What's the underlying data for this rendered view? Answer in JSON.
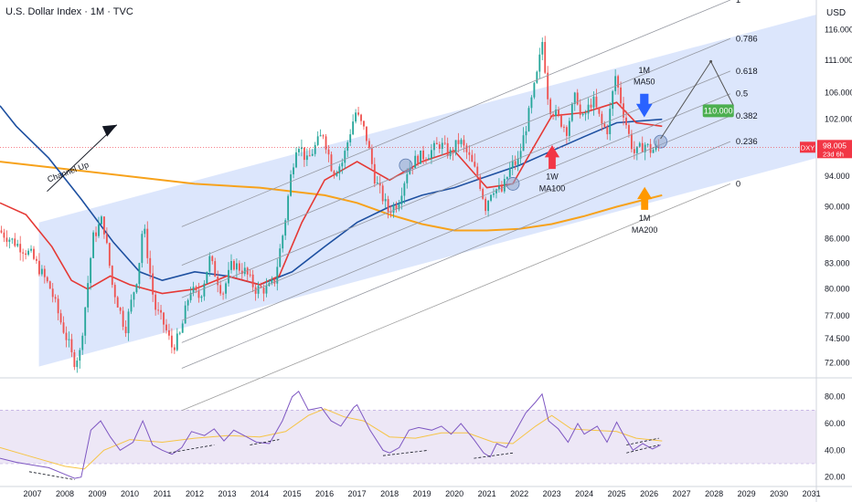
{
  "header": {
    "title": "U.S. Dollar Index · 1M · TVC",
    "currency": "USD"
  },
  "colors": {
    "up": "#26a69a",
    "down": "#ef5350",
    "ma_red": "#e53935",
    "ma_blue": "#1e50a0",
    "ma_orange": "#f7a21b",
    "channel": "#d6e2fb",
    "rsi_line": "#7e57c2",
    "rsi_ma": "#f6c445",
    "rsi_band": "#ede7f6",
    "target": "#4caf50"
  },
  "chart_data": {
    "type": "candlestick",
    "title": "U.S. Dollar Index · 1M · TVC",
    "price_axis": {
      "label": "USD",
      "ticks": [
        "116.000",
        "111.000",
        "106.000",
        "102.000",
        "98.000",
        "94.000",
        "90.000",
        "86.000",
        "83.000",
        "80.000",
        "77.000",
        "74.500",
        "72.000"
      ],
      "scale": "log",
      "range": [
        71,
        121
      ]
    },
    "rsi_axis": {
      "ticks": [
        "80.00",
        "60.00",
        "40.00",
        "20.00"
      ],
      "range": [
        15,
        90
      ],
      "band": [
        30,
        70
      ]
    },
    "time_axis": {
      "ticks": [
        "2007",
        "2008",
        "2009",
        "2010",
        "2011",
        "2012",
        "2013",
        "2014",
        "2015",
        "2016",
        "2017",
        "2018",
        "2019",
        "2020",
        "2021",
        "2022",
        "2023",
        "2024",
        "2025",
        "2026",
        "2027",
        "2028",
        "2029",
        "2030",
        "2031"
      ]
    },
    "price_path": [
      [
        2006.0,
        87.0
      ],
      [
        2006.5,
        85.5
      ],
      [
        2007.0,
        84.0
      ],
      [
        2007.3,
        82.0
      ],
      [
        2007.6,
        80.0
      ],
      [
        2007.9,
        76.5
      ],
      [
        2008.2,
        73.5
      ],
      [
        2008.3,
        72.0
      ],
      [
        2008.5,
        73.0
      ],
      [
        2008.7,
        79.0
      ],
      [
        2008.9,
        86.0
      ],
      [
        2009.2,
        88.5
      ],
      [
        2009.5,
        80.5
      ],
      [
        2009.9,
        75.5
      ],
      [
        2010.3,
        82.0
      ],
      [
        2010.45,
        88.0
      ],
      [
        2010.8,
        78.0
      ],
      [
        2011.1,
        76.0
      ],
      [
        2011.35,
        73.5
      ],
      [
        2011.6,
        75.0
      ],
      [
        2011.9,
        80.0
      ],
      [
        2012.2,
        79.0
      ],
      [
        2012.5,
        83.5
      ],
      [
        2012.9,
        79.5
      ],
      [
        2013.2,
        83.0
      ],
      [
        2013.6,
        82.0
      ],
      [
        2013.9,
        80.0
      ],
      [
        2014.3,
        80.0
      ],
      [
        2014.5,
        81.0
      ],
      [
        2014.8,
        87.5
      ],
      [
        2015.0,
        94.0
      ],
      [
        2015.2,
        99.0
      ],
      [
        2015.5,
        96.0
      ],
      [
        2015.8,
        98.5
      ],
      [
        2016.0,
        100.0
      ],
      [
        2016.3,
        94.5
      ],
      [
        2016.6,
        96.0
      ],
      [
        2016.9,
        101.5
      ],
      [
        2017.0,
        103.0
      ],
      [
        2017.3,
        100.0
      ],
      [
        2017.6,
        93.5
      ],
      [
        2018.0,
        89.5
      ],
      [
        2018.3,
        90.5
      ],
      [
        2018.6,
        95.0
      ],
      [
        2018.9,
        96.5
      ],
      [
        2019.2,
        97.0
      ],
      [
        2019.6,
        98.5
      ],
      [
        2019.9,
        97.0
      ],
      [
        2020.2,
        99.0
      ],
      [
        2020.5,
        96.5
      ],
      [
        2020.8,
        93.5
      ],
      [
        2021.0,
        90.0
      ],
      [
        2021.2,
        92.5
      ],
      [
        2021.5,
        92.0
      ],
      [
        2021.8,
        95.5
      ],
      [
        2022.0,
        96.0
      ],
      [
        2022.3,
        102.0
      ],
      [
        2022.6,
        109.0
      ],
      [
        2022.75,
        114.0
      ],
      [
        2022.95,
        104.0
      ],
      [
        2023.2,
        102.5
      ],
      [
        2023.5,
        100.5
      ],
      [
        2023.8,
        106.0
      ],
      [
        2023.95,
        101.5
      ],
      [
        2024.3,
        105.0
      ],
      [
        2024.6,
        101.0
      ],
      [
        2024.75,
        100.5
      ],
      [
        2025.0,
        108.5
      ],
      [
        2025.2,
        104.0
      ],
      [
        2025.45,
        99.0
      ],
      [
        2025.6,
        97.0
      ],
      [
        2025.9,
        98.5
      ],
      [
        2026.1,
        97.5
      ],
      [
        2026.3,
        98.0
      ]
    ],
    "ma_1m_50": [
      [
        2006.0,
        104.0
      ],
      [
        2006.5,
        101.0
      ],
      [
        2007.5,
        96.5
      ],
      [
        2008.5,
        91.0
      ],
      [
        2009.5,
        85.5
      ],
      [
        2010.3,
        82.0
      ],
      [
        2011.0,
        81.0
      ],
      [
        2012.0,
        82.0
      ],
      [
        2013.0,
        81.5
      ],
      [
        2014.0,
        80.5
      ],
      [
        2015.0,
        82.0
      ],
      [
        2016.0,
        85.0
      ],
      [
        2017.0,
        88.0
      ],
      [
        2018.0,
        90.0
      ],
      [
        2019.0,
        91.5
      ],
      [
        2020.0,
        92.5
      ],
      [
        2021.0,
        94.0
      ],
      [
        2022.0,
        95.5
      ],
      [
        2023.0,
        97.5
      ],
      [
        2024.0,
        99.5
      ],
      [
        2025.0,
        101.5
      ],
      [
        2026.4,
        102.0
      ]
    ],
    "ma_1w_100": [
      [
        2006.0,
        90.5
      ],
      [
        2006.8,
        89.0
      ],
      [
        2007.6,
        85.0
      ],
      [
        2008.2,
        81.0
      ],
      [
        2008.7,
        80.0
      ],
      [
        2009.4,
        81.5
      ],
      [
        2010.0,
        80.5
      ],
      [
        2011.0,
        79.5
      ],
      [
        2012.0,
        80.0
      ],
      [
        2013.0,
        81.5
      ],
      [
        2014.0,
        80.5
      ],
      [
        2014.6,
        81.5
      ],
      [
        2015.3,
        88.0
      ],
      [
        2016.0,
        93.5
      ],
      [
        2017.0,
        96.0
      ],
      [
        2018.0,
        93.5
      ],
      [
        2019.0,
        96.0
      ],
      [
        2020.0,
        97.5
      ],
      [
        2021.0,
        92.5
      ],
      [
        2021.8,
        93.0
      ],
      [
        2022.5,
        98.5
      ],
      [
        2023.0,
        102.5
      ],
      [
        2024.0,
        103.0
      ],
      [
        2025.0,
        104.5
      ],
      [
        2025.6,
        101.5
      ],
      [
        2026.4,
        101.0
      ]
    ],
    "ma_1m_200": [
      [
        2006.0,
        96.0
      ],
      [
        2007.0,
        95.5
      ],
      [
        2008.0,
        95.0
      ],
      [
        2010.0,
        94.0
      ],
      [
        2012.0,
        93.0
      ],
      [
        2014.0,
        92.5
      ],
      [
        2015.0,
        92.0
      ],
      [
        2016.0,
        91.5
      ],
      [
        2017.0,
        90.5
      ],
      [
        2018.0,
        89.0
      ],
      [
        2019.0,
        87.8
      ],
      [
        2020.0,
        87.0
      ],
      [
        2021.0,
        87.0
      ],
      [
        2022.0,
        87.2
      ],
      [
        2023.0,
        87.8
      ],
      [
        2024.0,
        88.8
      ],
      [
        2025.0,
        90.0
      ],
      [
        2026.4,
        91.5
      ]
    ],
    "rsi": [
      [
        2006.0,
        34
      ],
      [
        2006.5,
        31
      ],
      [
        2007.0,
        29
      ],
      [
        2007.5,
        27
      ],
      [
        2008.0,
        22
      ],
      [
        2008.3,
        19
      ],
      [
        2008.5,
        20
      ],
      [
        2008.8,
        55
      ],
      [
        2009.1,
        62
      ],
      [
        2009.4,
        50
      ],
      [
        2009.7,
        40
      ],
      [
        2010.1,
        46
      ],
      [
        2010.4,
        62
      ],
      [
        2010.7,
        44
      ],
      [
        2011.0,
        40
      ],
      [
        2011.3,
        37
      ],
      [
        2011.6,
        42
      ],
      [
        2011.9,
        54
      ],
      [
        2012.3,
        51
      ],
      [
        2012.6,
        56
      ],
      [
        2012.9,
        47
      ],
      [
        2013.2,
        55
      ],
      [
        2013.6,
        50
      ],
      [
        2013.9,
        46
      ],
      [
        2014.3,
        45
      ],
      [
        2014.7,
        62
      ],
      [
        2015.0,
        80
      ],
      [
        2015.2,
        84
      ],
      [
        2015.5,
        70
      ],
      [
        2015.9,
        72
      ],
      [
        2016.2,
        62
      ],
      [
        2016.5,
        58
      ],
      [
        2016.9,
        72
      ],
      [
        2017.0,
        74
      ],
      [
        2017.4,
        55
      ],
      [
        2017.8,
        40
      ],
      [
        2018.0,
        38
      ],
      [
        2018.3,
        42
      ],
      [
        2018.6,
        55
      ],
      [
        2018.9,
        57
      ],
      [
        2019.3,
        55
      ],
      [
        2019.6,
        58
      ],
      [
        2019.9,
        52
      ],
      [
        2020.2,
        60
      ],
      [
        2020.6,
        48
      ],
      [
        2020.9,
        38
      ],
      [
        2021.1,
        35
      ],
      [
        2021.3,
        45
      ],
      [
        2021.6,
        42
      ],
      [
        2021.9,
        55
      ],
      [
        2022.2,
        68
      ],
      [
        2022.5,
        76
      ],
      [
        2022.7,
        82
      ],
      [
        2022.9,
        62
      ],
      [
        2023.2,
        56
      ],
      [
        2023.5,
        46
      ],
      [
        2023.8,
        60
      ],
      [
        2024.0,
        52
      ],
      [
        2024.4,
        58
      ],
      [
        2024.7,
        46
      ],
      [
        2025.0,
        61
      ],
      [
        2025.2,
        52
      ],
      [
        2025.5,
        40
      ],
      [
        2025.8,
        45
      ],
      [
        2026.1,
        41
      ],
      [
        2026.35,
        44
      ]
    ],
    "rsi_ma": [
      [
        2006.0,
        42
      ],
      [
        2007.0,
        35
      ],
      [
        2008.0,
        28
      ],
      [
        2008.6,
        26
      ],
      [
        2009.2,
        40
      ],
      [
        2010.0,
        48
      ],
      [
        2011.0,
        46
      ],
      [
        2012.0,
        49
      ],
      [
        2013.0,
        51
      ],
      [
        2014.0,
        50
      ],
      [
        2014.8,
        54
      ],
      [
        2015.5,
        66
      ],
      [
        2016.0,
        71
      ],
      [
        2016.6,
        65
      ],
      [
        2017.2,
        62
      ],
      [
        2018.0,
        50
      ],
      [
        2018.8,
        49
      ],
      [
        2019.6,
        53
      ],
      [
        2020.4,
        53
      ],
      [
        2021.2,
        46
      ],
      [
        2021.8,
        45
      ],
      [
        2022.5,
        58
      ],
      [
        2023.0,
        66
      ],
      [
        2023.6,
        56
      ],
      [
        2024.2,
        55
      ],
      [
        2025.0,
        54
      ],
      [
        2025.6,
        49
      ],
      [
        2026.4,
        47
      ]
    ],
    "fib_levels": [
      {
        "label": "1",
        "y_at_end": 121.0
      },
      {
        "label": "0.786",
        "y_at_end": 114.5
      },
      {
        "label": "0.618",
        "y_at_end": 109.3
      },
      {
        "label": "0.5",
        "y_at_end": 105.8
      },
      {
        "label": "0.382",
        "y_at_end": 102.5
      },
      {
        "label": "0.236",
        "y_at_end": 98.8
      },
      {
        "label": "0",
        "y_at_end": 93.0
      }
    ],
    "annotations": {
      "channel_label": "Channel Up",
      "ma50_label": [
        "1M",
        "MA50"
      ],
      "ma100_label": [
        "1W",
        "MA100"
      ],
      "ma200_label": [
        "1M",
        "MA200"
      ],
      "target": "110.000",
      "last_price": "98.005",
      "countdown": "23d 6h",
      "symbol": "DXY"
    }
  }
}
